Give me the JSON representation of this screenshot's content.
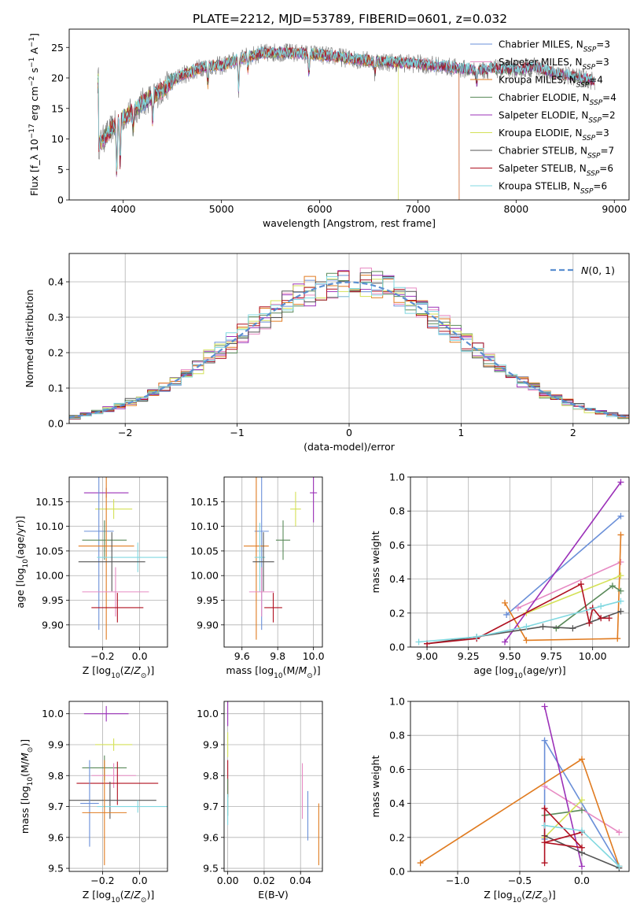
{
  "figure_title": "PLATE=2212, MJD=53789, FIBERID=0601, z=0.032",
  "colors": {
    "Chabrier MILES": "#6a8fd8",
    "Salpeter MILES": "#e78ac3",
    "Kroupa MILES": "#e07b20",
    "Chabrier ELODIE": "#5a8a5a",
    "Salpeter ELODIE": "#9b30b8",
    "Kroupa ELODIE": "#d4e157",
    "Chabrier STELIB": "#555555",
    "Salpeter STELIB": "#b01020",
    "Kroupa STELIB": "#80d8e0",
    "data": "#777777"
  },
  "chart_data": [
    {
      "id": "spectrum",
      "type": "line",
      "xlabel": "wavelength [Angstrom, rest frame]",
      "ylabel": "Flux [f_λ 10^-17 erg cm^-2 s^-1 A^-1]",
      "xlim": [
        3450,
        9150
      ],
      "ylim": [
        0,
        28
      ],
      "xticks": [
        4000,
        5000,
        6000,
        7000,
        8000,
        9000
      ],
      "yticks": [
        0,
        5,
        10,
        15,
        20,
        25
      ],
      "legend_position": "upper-right",
      "legend": [
        {
          "label": "Chabrier MILES, N_SSP=3"
        },
        {
          "label": "Salpeter MILES, N_SSP=3"
        },
        {
          "label": "Kroupa MILES, N_SSP=4"
        },
        {
          "label": "Chabrier ELODIE, N_SSP=4"
        },
        {
          "label": "Salpeter ELODIE, N_SSP=2"
        },
        {
          "label": "Kroupa ELODIE, N_SSP=3"
        },
        {
          "label": "Chabrier STELIB, N_SSP=7"
        },
        {
          "label": "Salpeter STELIB, N_SSP=6"
        },
        {
          "label": "Kroupa STELIB, N_SSP=6"
        }
      ],
      "continuum": {
        "x": [
          3750,
          3800,
          3900,
          4000,
          4100,
          4200,
          4300,
          4400,
          4500,
          4600,
          4700,
          4800,
          4900,
          5000,
          5200,
          5400,
          5600,
          5800,
          6000,
          6200,
          6400,
          6600,
          6800,
          7000,
          7200,
          7400,
          7600,
          7800,
          8000,
          8200,
          8400,
          8600,
          8800
        ],
        "y": [
          9,
          10,
          12,
          13.5,
          14.5,
          16,
          17,
          18,
          19.5,
          20.5,
          21,
          21.8,
          22,
          22,
          23.2,
          24,
          24.2,
          24,
          23.8,
          23.4,
          23,
          22.7,
          22.5,
          22.3,
          22,
          21.6,
          21.2,
          21.5,
          21.3,
          21.8,
          20.6,
          20.2,
          19.5
        ]
      },
      "model_ends": {
        "Kroupa ELODIE": 6800,
        "Kroupa MILES": 7420,
        "Salpeter MILES": 7420,
        "Chabrier MILES": 7420
      }
    },
    {
      "id": "residual-histogram",
      "type": "histogram",
      "xlabel": "(data-model)/error",
      "ylabel": "Normed distribution",
      "xlim": [
        -2.5,
        2.5
      ],
      "ylim": [
        0,
        0.48
      ],
      "xticks": [
        -2,
        -1,
        0,
        1,
        2
      ],
      "yticks": [
        0.0,
        0.1,
        0.2,
        0.3,
        0.4
      ],
      "grid": true,
      "reference_label": "N(0,1)",
      "legend_position": "upper-right"
    },
    {
      "id": "age-vs-Z",
      "type": "errorbar",
      "xlabel": "Z [log10(Z/Z⊙)]",
      "ylabel": "age  [log10(age/yr)]",
      "xlim": [
        -0.38,
        0.15
      ],
      "ylim": [
        9.855,
        10.2
      ],
      "xticks": [
        -0.2,
        0.0
      ],
      "yticks": [
        9.9,
        9.95,
        10.0,
        10.05,
        10.1,
        10.15
      ],
      "grid": true,
      "points": [
        {
          "model": "Salpeter ELODIE",
          "x": -0.18,
          "xerr": 0.12,
          "y": 10.168,
          "yerr": 0.01
        },
        {
          "model": "Kroupa ELODIE",
          "x": -0.14,
          "xerr": 0.1,
          "y": 10.135,
          "yerr": 0.02
        },
        {
          "model": "Chabrier MILES",
          "x": -0.22,
          "xerr": 0.08,
          "y": 10.09,
          "yerr": 0.2
        },
        {
          "model": "Chabrier ELODIE",
          "x": -0.19,
          "xerr": 0.12,
          "y": 10.072,
          "yerr": 0.04
        },
        {
          "model": "Kroupa MILES",
          "x": -0.18,
          "xerr": 0.15,
          "y": 10.06,
          "yerr": 0.19
        },
        {
          "model": "Kroupa STELIB",
          "x": -0.01,
          "xerr": 0.22,
          "y": 10.037,
          "yerr": 0.03
        },
        {
          "model": "Chabrier STELIB",
          "x": -0.15,
          "xerr": 0.18,
          "y": 10.028,
          "yerr": 0.06
        },
        {
          "model": "Salpeter MILES",
          "x": -0.13,
          "xerr": 0.18,
          "y": 9.967,
          "yerr": 0.05
        },
        {
          "model": "Salpeter STELIB",
          "x": -0.12,
          "xerr": 0.14,
          "y": 9.935,
          "yerr": 0.03
        }
      ]
    },
    {
      "id": "age-vs-mass",
      "type": "errorbar",
      "xlabel": "mass [log10(M/M⊙)]",
      "ylabel": "",
      "xlim": [
        9.5,
        10.05
      ],
      "ylim": [
        9.855,
        10.2
      ],
      "xticks": [
        9.6,
        9.8,
        10.0
      ],
      "yticks": [
        9.9,
        9.95,
        10.0,
        10.05,
        10.1,
        10.15
      ],
      "grid": true,
      "points": [
        {
          "model": "Salpeter ELODIE",
          "x": 10.0,
          "xerr": 0.02,
          "y": 10.168,
          "yerr": 0.06
        },
        {
          "model": "Kroupa ELODIE",
          "x": 9.9,
          "xerr": 0.03,
          "y": 10.135,
          "yerr": 0.035
        },
        {
          "model": "Chabrier MILES",
          "x": 9.71,
          "xerr": 0.04,
          "y": 10.09,
          "yerr": 0.2
        },
        {
          "model": "Chabrier ELODIE",
          "x": 9.83,
          "xerr": 0.04,
          "y": 10.072,
          "yerr": 0.04
        },
        {
          "model": "Kroupa MILES",
          "x": 9.68,
          "xerr": 0.07,
          "y": 10.06,
          "yerr": 0.19
        },
        {
          "model": "Kroupa STELIB",
          "x": 9.7,
          "xerr": 0.03,
          "y": 10.037,
          "yerr": 0.07
        },
        {
          "model": "Chabrier STELIB",
          "x": 9.72,
          "xerr": 0.06,
          "y": 10.028,
          "yerr": 0.06
        },
        {
          "model": "Salpeter MILES",
          "x": 9.71,
          "xerr": 0.07,
          "y": 9.967,
          "yerr": 0.05
        },
        {
          "model": "Salpeter STELIB",
          "x": 9.775,
          "xerr": 0.05,
          "y": 9.935,
          "yerr": 0.03
        }
      ]
    },
    {
      "id": "massweight-vs-age",
      "type": "line",
      "xlabel": "age  [log10(age/yr)]",
      "ylabel": "mass weight",
      "xlim": [
        8.9,
        10.22
      ],
      "ylim": [
        0.0,
        1.0
      ],
      "xticks": [
        9.0,
        9.25,
        9.5,
        9.75,
        10.0
      ],
      "yticks": [
        0.0,
        0.2,
        0.4,
        0.6,
        0.8,
        1.0
      ],
      "grid": true,
      "series": [
        {
          "name": "Chabrier MILES",
          "x": [
            9.48,
            10.17
          ],
          "y": [
            0.19,
            0.77
          ]
        },
        {
          "name": "Salpeter MILES",
          "x": [
            9.55,
            10.17
          ],
          "y": [
            0.23,
            0.5
          ]
        },
        {
          "name": "Kroupa MILES",
          "x": [
            9.47,
            9.6,
            10.15,
            10.17
          ],
          "y": [
            0.26,
            0.04,
            0.05,
            0.66
          ]
        },
        {
          "name": "Chabrier ELODIE",
          "x": [
            9.78,
            10.12,
            10.17
          ],
          "y": [
            0.11,
            0.36,
            0.33
          ]
        },
        {
          "name": "Salpeter ELODIE",
          "x": [
            9.47,
            10.17
          ],
          "y": [
            0.03,
            0.97
          ]
        },
        {
          "name": "Kroupa ELODIE",
          "x": [
            9.6,
            10.17
          ],
          "y": [
            0.2,
            0.42
          ]
        },
        {
          "name": "Chabrier STELIB",
          "x": [
            9.0,
            9.3,
            9.7,
            9.88,
            10.17
          ],
          "y": [
            0.02,
            0.06,
            0.12,
            0.11,
            0.21
          ]
        },
        {
          "name": "Salpeter STELIB",
          "x": [
            9.0,
            9.3,
            9.93,
            9.98,
            10.0,
            10.05,
            10.1
          ],
          "y": [
            0.02,
            0.05,
            0.37,
            0.14,
            0.23,
            0.17,
            0.17
          ]
        },
        {
          "name": "Kroupa STELIB",
          "x": [
            8.95,
            9.3,
            9.6,
            10.05,
            10.17
          ],
          "y": [
            0.03,
            0.06,
            0.12,
            0.24,
            0.27
          ]
        }
      ]
    },
    {
      "id": "mass-vs-Z",
      "type": "errorbar",
      "xlabel": "Z [log10(Z/Z⊙)]",
      "ylabel": "mass [log10(M/M⊙)]",
      "xlim": [
        -0.38,
        0.15
      ],
      "ylim": [
        9.49,
        10.04
      ],
      "xticks": [
        -0.2,
        0.0
      ],
      "yticks": [
        9.5,
        9.6,
        9.7,
        9.8,
        9.9,
        10.0
      ],
      "grid": true,
      "points": [
        {
          "model": "Salpeter ELODIE",
          "x": -0.18,
          "xerr": 0.12,
          "y": 10.0,
          "yerr": 0.025
        },
        {
          "model": "Kroupa ELODIE",
          "x": -0.14,
          "xerr": 0.1,
          "y": 9.9,
          "yerr": 0.02
        },
        {
          "model": "Chabrier ELODIE",
          "x": -0.19,
          "xerr": 0.12,
          "y": 9.825,
          "yerr": 0.04
        },
        {
          "model": "Salpeter MILES",
          "x": -0.14,
          "xerr": 0.12,
          "y": 9.8,
          "yerr": 0.04
        },
        {
          "model": "Salpeter STELIB",
          "x": -0.12,
          "xerr": 0.22,
          "y": 9.775,
          "yerr": 0.07
        },
        {
          "model": "Chabrier STELIB",
          "x": -0.16,
          "xerr": 0.25,
          "y": 9.72,
          "yerr": 0.06
        },
        {
          "model": "Chabrier MILES",
          "x": -0.27,
          "xerr": 0.05,
          "y": 9.71,
          "yerr": 0.14
        },
        {
          "model": "Kroupa STELIB",
          "x": -0.01,
          "xerr": 0.22,
          "y": 9.7,
          "yerr": 0.02
        },
        {
          "model": "Kroupa MILES",
          "x": -0.19,
          "xerr": 0.12,
          "y": 9.68,
          "yerr": 0.17
        }
      ]
    },
    {
      "id": "mass-vs-EBV",
      "type": "errorbar",
      "xlabel": "E(B-V)",
      "ylabel": "",
      "xlim": [
        -0.002,
        0.052
      ],
      "ylim": [
        9.49,
        10.04
      ],
      "xticks": [
        0.0,
        0.02,
        0.04
      ],
      "yticks": [
        9.5,
        9.6,
        9.7,
        9.8,
        9.9,
        10.0
      ],
      "grid": true,
      "points": [
        {
          "model": "Salpeter ELODIE",
          "x": 0.0,
          "y": 10.0,
          "yerr": 0.04
        },
        {
          "model": "Kroupa ELODIE",
          "x": 0.0,
          "y": 9.9,
          "yerr": 0.04
        },
        {
          "model": "Salpeter STELIB",
          "x": 0.0,
          "y": 9.79,
          "yerr": 0.06
        },
        {
          "model": "Chabrier ELODIE",
          "x": 0.0,
          "y": 9.73,
          "yerr": 0.06
        },
        {
          "model": "Kroupa STELIB",
          "x": 0.0,
          "y": 9.69,
          "yerr": 0.05
        },
        {
          "model": "Salpeter MILES",
          "x": 0.041,
          "y": 9.75,
          "yerr": 0.09
        },
        {
          "model": "Chabrier MILES",
          "x": 0.044,
          "y": 9.67,
          "yerr": 0.08
        },
        {
          "model": "Kroupa MILES",
          "x": 0.05,
          "y": 9.61,
          "yerr": 0.1
        }
      ]
    },
    {
      "id": "massweight-vs-Z",
      "type": "line",
      "xlabel": "Z [log10(Z/Z⊙)]",
      "ylabel": "mass weight",
      "xlim": [
        -1.38,
        0.38
      ],
      "ylim": [
        0.0,
        1.0
      ],
      "xticks": [
        -1.0,
        -0.5,
        0.0
      ],
      "yticks": [
        0.0,
        0.2,
        0.4,
        0.6,
        0.8,
        1.0
      ],
      "grid": true,
      "series": [
        {
          "name": "Chabrier MILES",
          "x": [
            -0.3,
            -0.3,
            0.3
          ],
          "y": [
            0.19,
            0.77,
            0.03
          ]
        },
        {
          "name": "Salpeter MILES",
          "x": [
            -0.3,
            0.3
          ],
          "y": [
            0.5,
            0.23
          ]
        },
        {
          "name": "Kroupa MILES",
          "x": [
            -1.3,
            0.0,
            0.3
          ],
          "y": [
            0.05,
            0.66,
            0.03
          ]
        },
        {
          "name": "Chabrier ELODIE",
          "x": [
            -0.3,
            0.0
          ],
          "y": [
            0.33,
            0.36
          ]
        },
        {
          "name": "Salpeter ELODIE",
          "x": [
            -0.3,
            0.0
          ],
          "y": [
            0.97,
            0.03
          ]
        },
        {
          "name": "Kroupa ELODIE",
          "x": [
            -0.3,
            0.0
          ],
          "y": [
            0.2,
            0.42
          ]
        },
        {
          "name": "Chabrier STELIB",
          "x": [
            -0.3,
            0.0,
            0.3
          ],
          "y": [
            0.21,
            0.11,
            0.02
          ]
        },
        {
          "name": "Salpeter STELIB",
          "x": [
            -0.3,
            -0.3,
            0.0,
            -0.3,
            0.0
          ],
          "y": [
            0.05,
            0.37,
            0.14,
            0.17,
            0.23
          ]
        },
        {
          "name": "Kroupa STELIB",
          "x": [
            -0.3,
            0.0,
            0.3
          ],
          "y": [
            0.27,
            0.24,
            0.03
          ]
        }
      ]
    }
  ]
}
